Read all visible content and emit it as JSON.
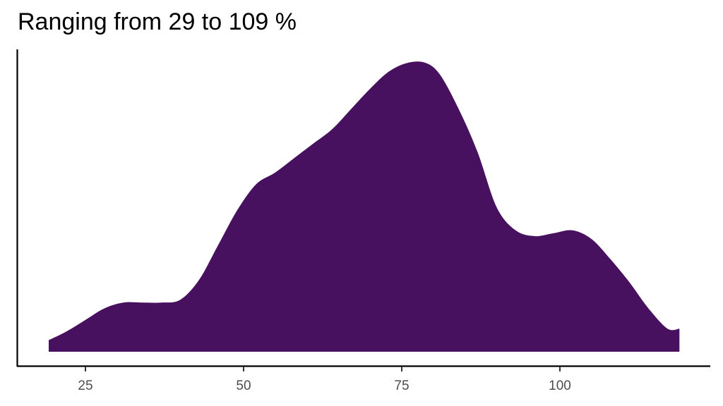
{
  "chart_data": {
    "type": "area",
    "subtype": "density",
    "title": "Ranging from 29 to 109 %",
    "xlabel": "",
    "ylabel": "",
    "xlim": [
      15,
      125
    ],
    "x_ticks": [
      25,
      50,
      75,
      100
    ],
    "y_ticks": [],
    "grid": false,
    "legend": null,
    "fill_color": "#481160",
    "x": [
      19.2,
      22,
      25,
      28,
      31,
      34,
      37,
      40,
      43,
      46,
      49,
      52,
      55,
      58,
      61,
      64,
      67,
      70,
      73,
      76,
      78.7,
      81,
      84,
      87,
      90,
      93,
      96,
      99,
      102,
      105,
      108,
      111,
      114,
      117,
      118.9
    ],
    "density_relative": [
      0.04,
      0.07,
      0.11,
      0.15,
      0.17,
      0.17,
      0.17,
      0.18,
      0.25,
      0.37,
      0.49,
      0.58,
      0.62,
      0.67,
      0.72,
      0.77,
      0.84,
      0.91,
      0.97,
      1.0,
      1.0,
      0.96,
      0.84,
      0.69,
      0.5,
      0.42,
      0.4,
      0.41,
      0.42,
      0.39,
      0.32,
      0.24,
      0.15,
      0.08,
      0.08
    ]
  },
  "axis": {
    "x_tick_labels": [
      "25",
      "50",
      "75",
      "100"
    ]
  }
}
